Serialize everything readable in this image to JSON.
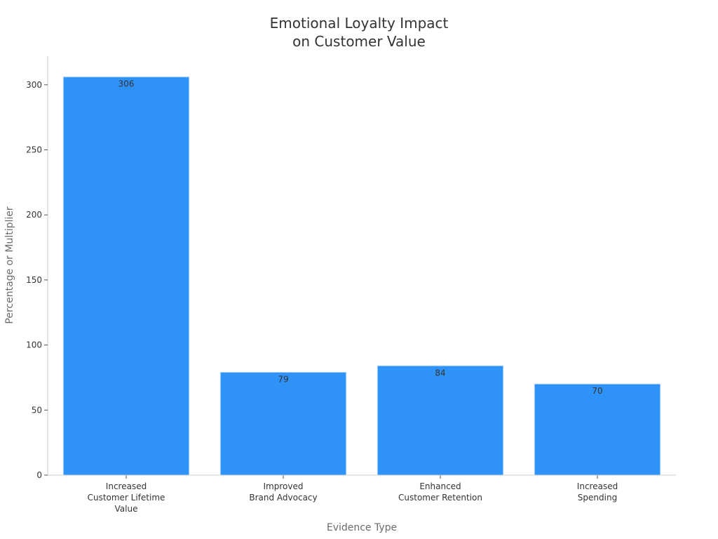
{
  "chart_data": {
    "type": "bar",
    "title": [
      "Emotional Loyalty Impact",
      "on Customer Value"
    ],
    "xlabel": "Evidence Type",
    "ylabel": "Percentage or Multiplier",
    "categories": [
      [
        "Increased",
        "Customer Lifetime",
        "Value"
      ],
      [
        "Improved",
        "Brand Advocacy"
      ],
      [
        "Enhanced",
        "Customer Retention"
      ],
      [
        "Increased",
        "Spending"
      ]
    ],
    "values": [
      306,
      79,
      84,
      70
    ],
    "data_labels": [
      "306",
      "79",
      "84",
      "70"
    ],
    "yticks": [
      0,
      50,
      100,
      150,
      200,
      250,
      300
    ],
    "ylim": [
      0,
      322
    ],
    "bar_color": "#2f92f7",
    "bar_edge_color": "#a8cff8",
    "grid": false,
    "legend": "none"
  }
}
